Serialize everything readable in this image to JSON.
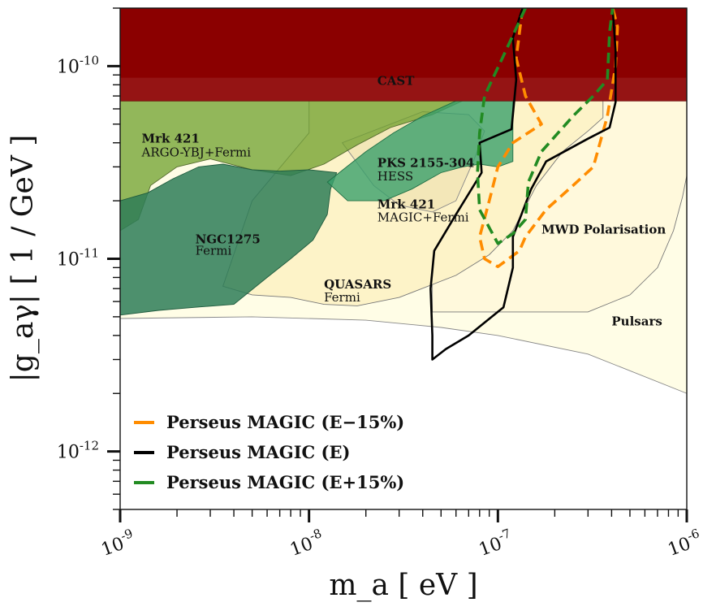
{
  "chart_data": {
    "type": "area",
    "title": "",
    "xlabel": "m_a [ eV ]",
    "ylabel": "|g_aγ| [ 1 / GeV ]",
    "xscale": "log",
    "yscale": "log",
    "xlim": [
      1e-09,
      1e-06
    ],
    "ylim": [
      5e-13,
      2e-10
    ],
    "grid": false,
    "x_tick_labels": [
      {
        "value": 1e-09,
        "label": "10^-9"
      },
      {
        "value": 1e-08,
        "label": "10^-8"
      },
      {
        "value": 1e-07,
        "label": "10^-7"
      },
      {
        "value": 1e-06,
        "label": "10^-6"
      }
    ],
    "y_tick_labels": [
      {
        "value": 1e-12,
        "label": "10^-12"
      },
      {
        "value": 1e-11,
        "label": "10^-11"
      },
      {
        "value": 1e-10,
        "label": "10^-10"
      }
    ],
    "regions": [
      {
        "name": "Pulsars",
        "color": "#fffde6",
        "edge": "#888888",
        "points": [
          [
            1e-09,
            4.9e-12
          ],
          [
            5e-09,
            5e-12
          ],
          [
            2e-08,
            4.8e-12
          ],
          [
            5e-08,
            4.4e-12
          ],
          [
            1e-07,
            4e-12
          ],
          [
            3e-07,
            3.2e-12
          ],
          [
            1e-06,
            2e-12
          ],
          [
            1e-06,
            6.6e-11
          ],
          [
            1e-09,
            6.6e-11
          ]
        ]
      },
      {
        "name": "MWD Polarisation",
        "color": "#fff9dc",
        "edge": "#777777",
        "points": [
          [
            4.5e-08,
            5.3e-12
          ],
          [
            3e-07,
            5.3e-12
          ],
          [
            5e-07,
            6.5e-12
          ],
          [
            7e-07,
            9e-12
          ],
          [
            8.5e-07,
            1.4e-11
          ],
          [
            9.5e-07,
            2.1e-11
          ],
          [
            1e-06,
            2.7e-11
          ],
          [
            1e-06,
            6.6e-11
          ],
          [
            4.5e-08,
            6.6e-11
          ]
        ]
      },
      {
        "name": "Fermi (QUASARS)",
        "color": "#fdf3c8",
        "edge": "#777777",
        "points": [
          [
            3.5e-09,
            7.2e-12
          ],
          [
            5e-09,
            6.5e-12
          ],
          [
            8e-09,
            6.3e-12
          ],
          [
            1.2e-08,
            5.8e-12
          ],
          [
            1.8e-08,
            5.7e-12
          ],
          [
            3e-08,
            6.3e-12
          ],
          [
            6e-08,
            8.2e-12
          ],
          [
            9e-08,
            1.05e-11
          ],
          [
            1.2e-07,
            1.4e-11
          ],
          [
            1.6e-07,
            2.4e-11
          ],
          [
            2.2e-07,
            3.6e-11
          ],
          [
            3e-07,
            4.6e-11
          ],
          [
            3.6e-07,
            5.4e-11
          ],
          [
            3.6e-07,
            6.6e-11
          ],
          [
            1e-08,
            6.6e-11
          ],
          [
            1e-08,
            4.5e-11
          ],
          [
            5e-09,
            2e-11
          ]
        ]
      },
      {
        "name": "Mrk 421 MAGIC+Fermi",
        "color": "#f3e7b8",
        "edge": "#888888",
        "points": [
          [
            1.5e-08,
            4e-11
          ],
          [
            2.2e-08,
            2.4e-11
          ],
          [
            3e-08,
            1.9e-11
          ],
          [
            4.5e-08,
            1.75e-11
          ],
          [
            6e-08,
            2e-11
          ],
          [
            7.5e-08,
            3.3e-11
          ],
          [
            8.5e-08,
            4.6e-11
          ],
          [
            7e-08,
            5.6e-11
          ],
          [
            4e-08,
            5.8e-11
          ]
        ]
      },
      {
        "name": "Mrk 421 ARGO-YBJ+Fermi",
        "color": "#6d9f2b",
        "edge": "#556b2f",
        "opacity": 0.75,
        "points": [
          [
            1e-09,
            1.4e-11
          ],
          [
            1.25e-09,
            1.6e-11
          ],
          [
            1.45e-09,
            2.4e-11
          ],
          [
            2e-09,
            3e-11
          ],
          [
            3e-09,
            3.3e-11
          ],
          [
            5e-09,
            2.9e-11
          ],
          [
            8e-09,
            2.7e-11
          ],
          [
            1.2e-08,
            3.1e-11
          ],
          [
            1.8e-08,
            3.9e-11
          ],
          [
            2.7e-08,
            4.8e-11
          ],
          [
            4.5e-08,
            5.6e-11
          ],
          [
            6.5e-08,
            6.6e-11
          ],
          [
            1e-09,
            6.6e-11
          ]
        ]
      },
      {
        "name": "NGC1275 Fermi",
        "color": "#2e7d57",
        "edge": "#1f5a3e",
        "opacity": 0.85,
        "points": [
          [
            1e-09,
            5.1e-12
          ],
          [
            1.6e-09,
            5.4e-12
          ],
          [
            2.5e-09,
            5.6e-12
          ],
          [
            4e-09,
            5.8e-12
          ],
          [
            6e-09,
            8e-12
          ],
          [
            8e-09,
            1e-11
          ],
          [
            1.05e-08,
            1.25e-11
          ],
          [
            1.25e-08,
            1.7e-11
          ],
          [
            1.3e-08,
            2.3e-11
          ],
          [
            1.4e-08,
            2.8e-11
          ],
          [
            1e-08,
            2.9e-11
          ],
          [
            7e-09,
            2.85e-11
          ],
          [
            5e-09,
            2.9e-11
          ],
          [
            3.5e-09,
            3.1e-11
          ],
          [
            2.6e-09,
            3e-11
          ],
          [
            1.9e-09,
            2.6e-11
          ],
          [
            1.4e-09,
            2.2e-11
          ],
          [
            1e-09,
            2e-11
          ]
        ]
      },
      {
        "name": "PKS 2155-304 HESS",
        "color": "#3aa06b",
        "edge": "#1f6e45",
        "opacity": 0.8,
        "points": [
          [
            1.25e-08,
            2.5e-11
          ],
          [
            1.6e-08,
            2e-11
          ],
          [
            2.5e-08,
            2e-11
          ],
          [
            3.5e-08,
            2.3e-11
          ],
          [
            5e-08,
            2.8e-11
          ],
          [
            6.5e-08,
            3e-11
          ],
          [
            8e-08,
            3.1e-11
          ],
          [
            1e-07,
            3e-11
          ],
          [
            1.2e-07,
            3.2e-11
          ],
          [
            1.2e-07,
            6.6e-11
          ],
          [
            6e-08,
            6.6e-11
          ],
          [
            4e-08,
            5.5e-11
          ],
          [
            2.8e-08,
            4.5e-11
          ],
          [
            2e-08,
            3.6e-11
          ]
        ]
      },
      {
        "name": "CAST",
        "color": "#8b0000",
        "edge": "#6b0000",
        "points": [
          [
            1e-09,
            6.6e-11
          ],
          [
            1e-06,
            6.6e-11
          ],
          [
            1e-06,
            2e-10
          ],
          [
            1e-09,
            2e-10
          ]
        ]
      }
    ],
    "series": [
      {
        "name": "Perseus MAGIC (E-15%)",
        "color": "#ff8c00",
        "style": "dashed",
        "x": [
          1.35e-07,
          1.25e-07,
          1.4e-07,
          1.7e-07,
          1.2e-07,
          1e-07,
          9e-08,
          8e-08,
          8.5e-08,
          1e-07,
          1.3e-07,
          1.4e-07,
          1.8e-07,
          2.5e-07,
          3.2e-07,
          3.8e-07,
          4.2e-07,
          4.3e-07,
          4.05e-07
        ],
        "y": [
          2e-10,
          1.1e-10,
          7e-11,
          5e-11,
          4e-11,
          3e-11,
          2e-11,
          1.3e-11,
          1e-11,
          9.1e-12,
          1.1e-11,
          1.3e-11,
          1.8e-11,
          2.4e-11,
          3e-11,
          5.5e-11,
          1e-10,
          1.6e-10,
          2e-10
        ]
      },
      {
        "name": "Perseus MAGIC (E)",
        "color": "#000000",
        "style": "solid",
        "x": [
          1.35e-07,
          1.2e-07,
          1.25e-07,
          1.18e-07,
          8e-08,
          8.2e-08,
          6e-08,
          4.6e-08,
          4.4e-08,
          4.5e-08,
          4.5e-08,
          5.3e-08,
          7e-08,
          1.07e-07,
          1.2e-07,
          1.2e-07,
          1.5e-07,
          1.8e-07,
          3e-07,
          3.9e-07,
          4.2e-07,
          4.2e-07,
          4.05e-07
        ],
        "y": [
          2e-10,
          1.4e-10,
          8.5e-11,
          4.7e-11,
          4e-11,
          2.8e-11,
          1.7e-11,
          1.1e-11,
          7e-12,
          4e-12,
          3e-12,
          3.4e-12,
          4e-12,
          5.6e-12,
          9e-12,
          1.3e-11,
          2.3e-11,
          3.2e-11,
          4.2e-11,
          4.8e-11,
          6.5e-11,
          1.2e-10,
          2e-10
        ]
      },
      {
        "name": "Perseus MAGIC (E+15%)",
        "color": "#228b22",
        "style": "dashed",
        "x": [
          1.4e-07,
          1.1e-07,
          8.5e-08,
          8e-08,
          7.8e-08,
          8e-08,
          9e-08,
          1e-07,
          1.2e-07,
          1.4e-07,
          1.45e-07,
          1.7e-07,
          2.5e-07,
          3.2e-07,
          3.8e-07,
          3.9e-07,
          4.05e-07
        ],
        "y": [
          2e-10,
          1.2e-10,
          7e-11,
          4.5e-11,
          2.8e-11,
          1.8e-11,
          1.45e-11,
          1.2e-11,
          1.35e-11,
          1.6e-11,
          2.5e-11,
          3.6e-11,
          5.5e-11,
          7e-11,
          8.5e-11,
          1.5e-10,
          2e-10
        ]
      }
    ],
    "annotations": [
      {
        "text": "CAST",
        "bold": true,
        "x": 2.3e-08,
        "y": 8e-11
      },
      {
        "text": "Mrk 421",
        "bold": true,
        "x": 1.3e-09,
        "y": 4e-11
      },
      {
        "text": "ARGO-YBJ+Fermi",
        "bold": false,
        "x": 1.3e-09,
        "y": 3.4e-11
      },
      {
        "text": "PKS 2155-304",
        "bold": true,
        "x": 2.3e-08,
        "y": 3e-11
      },
      {
        "text": "HESS",
        "bold": false,
        "x": 2.3e-08,
        "y": 2.55e-11
      },
      {
        "text": "Mrk 421",
        "bold": true,
        "x": 2.3e-08,
        "y": 1.83e-11
      },
      {
        "text": "MAGIC+Fermi",
        "bold": false,
        "x": 2.3e-08,
        "y": 1.56e-11
      },
      {
        "text": "NGC1275",
        "bold": true,
        "x": 2.5e-09,
        "y": 1.2e-11
      },
      {
        "text": "Fermi",
        "bold": false,
        "x": 2.5e-09,
        "y": 1.05e-11
      },
      {
        "text": "MWD Polarisation",
        "bold": true,
        "x": 1.7e-07,
        "y": 1.35e-11
      },
      {
        "text": "QUASARS",
        "bold": true,
        "x": 1.2e-08,
        "y": 7e-12
      },
      {
        "text": "Fermi",
        "bold": false,
        "x": 1.2e-08,
        "y": 6e-12
      },
      {
        "text": "Pulsars",
        "bold": true,
        "x": 4e-07,
        "y": 4.5e-12
      }
    ],
    "legend": {
      "position": "lower-left",
      "entries": [
        {
          "text": "Perseus MAGIC (E−15%)",
          "color": "#ff8c00"
        },
        {
          "text": "Perseus MAGIC (E)",
          "color": "#000000"
        },
        {
          "text": "Perseus MAGIC (E+15%)",
          "color": "#228b22"
        }
      ]
    }
  }
}
